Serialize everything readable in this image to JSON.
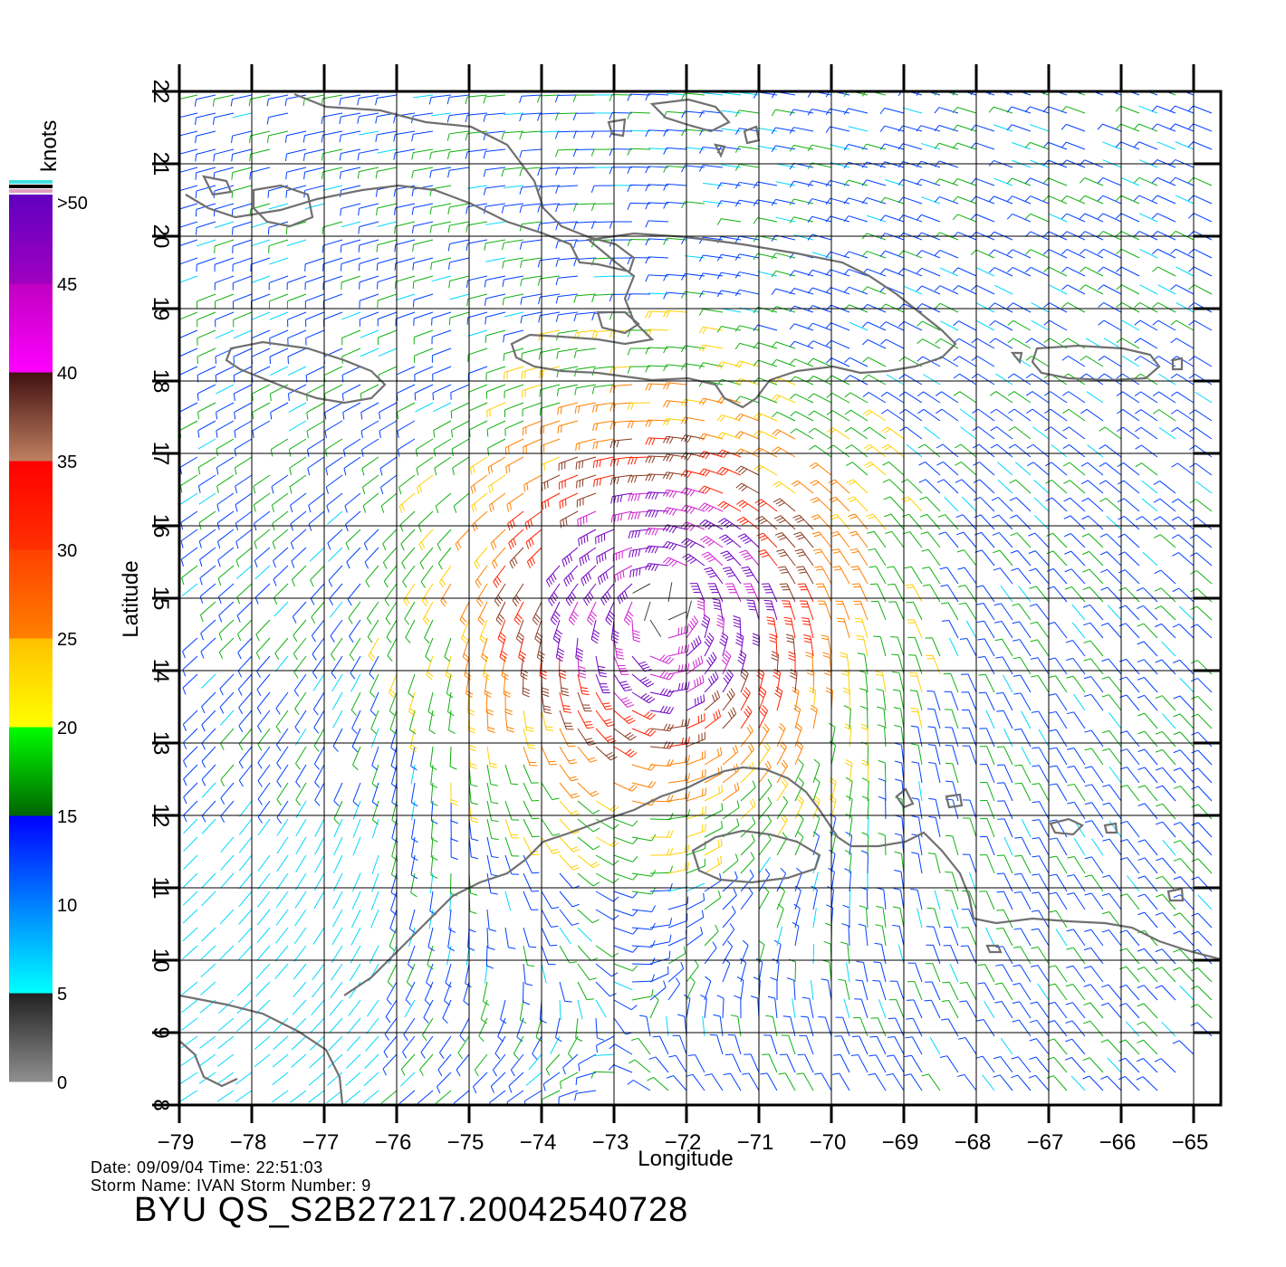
{
  "map": {
    "lon_ticks": [
      "-79",
      "-78",
      "-77",
      "-76",
      "-75",
      "-74",
      "-73",
      "-72",
      "-71",
      "-70",
      "-69",
      "-68",
      "-67",
      "-66",
      "-65"
    ],
    "lat_ticks": [
      "8",
      "9",
      "10",
      "11",
      "12",
      "13",
      "14",
      "15",
      "16",
      "17",
      "18",
      "19",
      "20",
      "21",
      "22"
    ],
    "x_label": "Longitude",
    "y_label": "Latitude",
    "lon_range": [
      -79,
      -65
    ],
    "lat_range": [
      8,
      22
    ]
  },
  "colorbar": {
    "unit_label": "knots",
    "ticks": [
      "0",
      "5",
      "10",
      "15",
      "20",
      "25",
      "30",
      "35",
      "40",
      "45",
      ">50"
    ],
    "bands": [
      {
        "from": 0,
        "to": 5,
        "colors": [
          "#909090",
          "#202020"
        ]
      },
      {
        "from": 5,
        "to": 10,
        "colors": [
          "#00ffff",
          "#0080ff"
        ]
      },
      {
        "from": 10,
        "to": 15,
        "colors": [
          "#0080ff",
          "#0000ff"
        ]
      },
      {
        "from": 15,
        "to": 20,
        "colors": [
          "#006400",
          "#00ff00"
        ]
      },
      {
        "from": 20,
        "to": 25,
        "colors": [
          "#ffff00",
          "#ffc000"
        ]
      },
      {
        "from": 25,
        "to": 30,
        "colors": [
          "#ff8000",
          "#ff4000"
        ]
      },
      {
        "from": 30,
        "to": 35,
        "colors": [
          "#ff3000",
          "#ff0000"
        ]
      },
      {
        "from": 35,
        "to": 40,
        "colors": [
          "#c08060",
          "#401010"
        ]
      },
      {
        "from": 40,
        "to": 45,
        "colors": [
          "#ff00ff",
          "#c000c0"
        ]
      },
      {
        "from": 45,
        "to": 50,
        "colors": [
          "#a000c0",
          "#6000c0"
        ]
      }
    ]
  },
  "storm": {
    "center_lon": -72.3,
    "center_lat": 15.0
  },
  "info": {
    "date_line": "Date: 09/09/04   Time: 22:51:03",
    "storm_line": "Storm  Name:  IVAN    Storm  Number:  9",
    "product_title": "BYU  QS_S2B27217.20042540728"
  }
}
